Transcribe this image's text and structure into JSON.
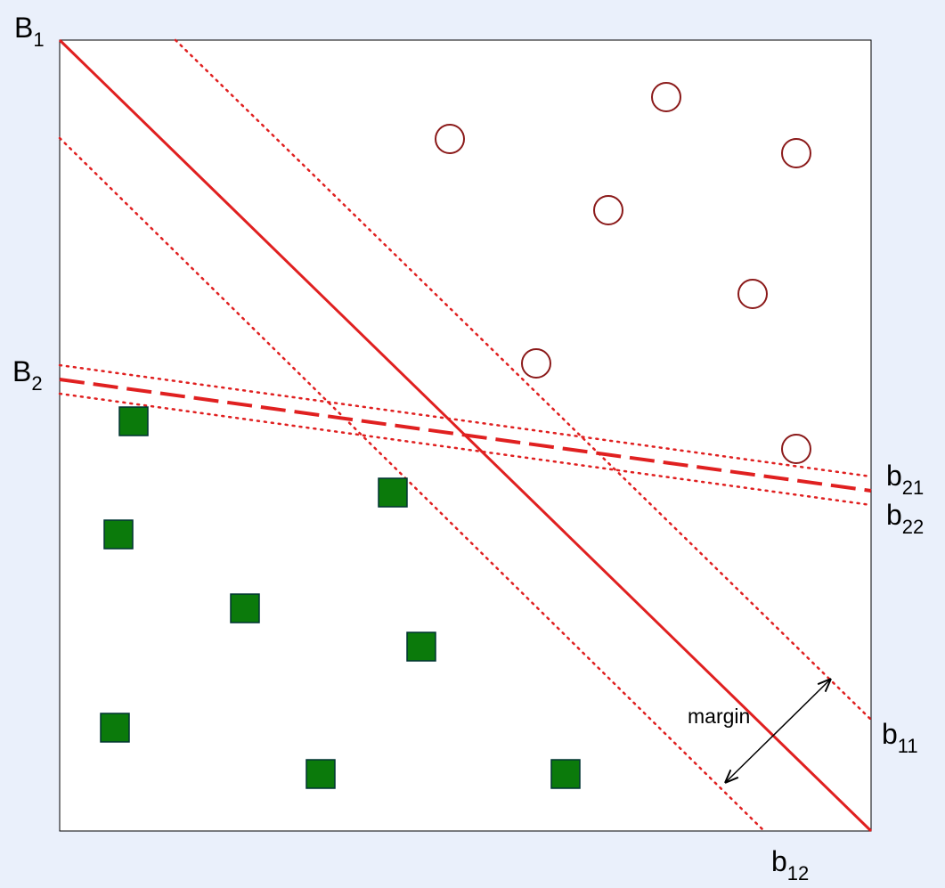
{
  "labels": [
    {
      "text": "B",
      "sub": "1"
    },
    {
      "text": "B",
      "sub": "2"
    },
    {
      "text": "b",
      "sub": "21"
    },
    {
      "text": "b",
      "sub": "22"
    },
    {
      "text": "b",
      "sub": "11"
    },
    {
      "text": "b",
      "sub": "12"
    }
  ],
  "margin_label": "margin"
}
